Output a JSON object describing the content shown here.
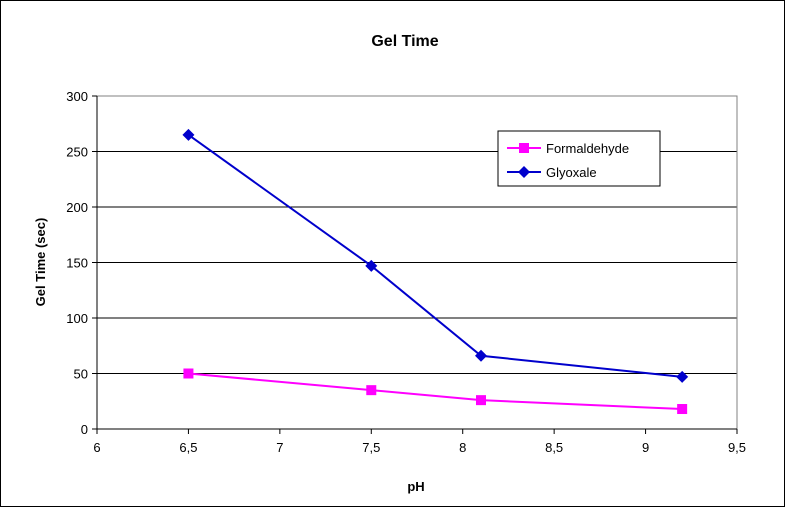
{
  "chart_data": {
    "type": "line",
    "title": "Gel Time",
    "xlabel": "pH",
    "ylabel": "Gel Time (sec)",
    "xlim": [
      6,
      9.5
    ],
    "ylim": [
      0,
      300
    ],
    "x_ticks": [
      "6",
      "6,5",
      "7",
      "7,5",
      "8",
      "8,5",
      "9",
      "9,5"
    ],
    "x_tick_values": [
      6,
      6.5,
      7,
      7.5,
      8,
      8.5,
      9,
      9.5
    ],
    "y_ticks": [
      "0",
      "50",
      "100",
      "150",
      "200",
      "250",
      "300"
    ],
    "y_tick_values": [
      0,
      50,
      100,
      150,
      200,
      250,
      300
    ],
    "grid": "horizontal",
    "legend_position": "top-right",
    "series": [
      {
        "name": "Formaldehyde",
        "color": "#ff00ff",
        "marker": "square",
        "x": [
          6.5,
          7.5,
          8.1,
          9.2
        ],
        "y": [
          50,
          35,
          26,
          18
        ]
      },
      {
        "name": "Glyoxale",
        "color": "#0000cc",
        "marker": "diamond",
        "x": [
          6.5,
          7.5,
          8.1,
          9.2
        ],
        "y": [
          265,
          147,
          66,
          47
        ]
      }
    ]
  }
}
